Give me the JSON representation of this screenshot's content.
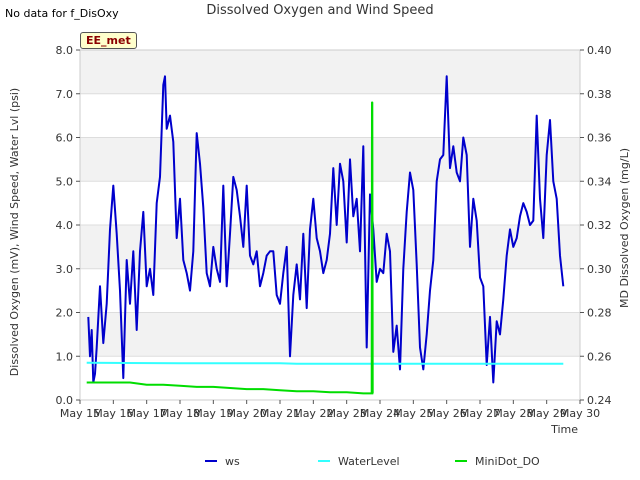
{
  "note": "No data for f_DisOxy",
  "badge": "EE_met",
  "chart_data": {
    "type": "line",
    "title": "Dissolved Oxygen and Wind Speed",
    "xlabel": "Time",
    "ylabel": "Dissolved Oxygen (mV), Wind Speed, Water Lvl (psi)",
    "y2label": "MD Dissolved Oxygen (mg/L)",
    "ylim": [
      0,
      8
    ],
    "y2lim": [
      0.24,
      0.4
    ],
    "yticks": [
      "0.0",
      "1.0",
      "2.0",
      "3.0",
      "4.0",
      "5.0",
      "6.0",
      "7.0",
      "8.0"
    ],
    "y2ticks": [
      "0.24",
      "0.26",
      "0.28",
      "0.30",
      "0.32",
      "0.34",
      "0.36",
      "0.38",
      "0.40"
    ],
    "xlim": [
      15,
      30
    ],
    "xticks": [
      "May 15",
      "May 16",
      "May 17",
      "May 18",
      "May 19",
      "May 20",
      "May 21",
      "May 22",
      "May 23",
      "May 24",
      "May 25",
      "May 26",
      "May 27",
      "May 28",
      "May 29",
      "May 30"
    ],
    "grid": "horizontal bands",
    "legend": "bottom",
    "series": [
      {
        "name": "ws",
        "color": "#0000cc",
        "axis": "left",
        "x": [
          15.25,
          15.3,
          15.35,
          15.4,
          15.45,
          15.5,
          15.6,
          15.7,
          15.8,
          15.9,
          16.0,
          16.1,
          16.2,
          16.3,
          16.4,
          16.5,
          16.6,
          16.7,
          16.8,
          16.9,
          17.0,
          17.1,
          17.2,
          17.3,
          17.4,
          17.5,
          17.55,
          17.6,
          17.7,
          17.8,
          17.9,
          18.0,
          18.1,
          18.2,
          18.3,
          18.4,
          18.5,
          18.6,
          18.7,
          18.8,
          18.9,
          19.0,
          19.1,
          19.2,
          19.3,
          19.4,
          19.5,
          19.6,
          19.7,
          19.8,
          19.9,
          20.0,
          20.1,
          20.2,
          20.3,
          20.4,
          20.5,
          20.6,
          20.7,
          20.8,
          20.9,
          21.0,
          21.1,
          21.2,
          21.3,
          21.4,
          21.5,
          21.6,
          21.7,
          21.8,
          21.9,
          22.0,
          22.1,
          22.2,
          22.3,
          22.4,
          22.5,
          22.6,
          22.7,
          22.8,
          22.9,
          23.0,
          23.1,
          23.2,
          23.3,
          23.4,
          23.5,
          23.6,
          23.7,
          23.8,
          23.9,
          24.0,
          24.1,
          24.2,
          24.3,
          24.4,
          24.5,
          24.6,
          24.7,
          24.8,
          24.9,
          25.0,
          25.1,
          25.2,
          25.3,
          25.4,
          25.5,
          25.6,
          25.7,
          25.8,
          25.9,
          26.0,
          26.1,
          26.2,
          26.3,
          26.4,
          26.5,
          26.6,
          26.7,
          26.8,
          26.9,
          27.0,
          27.1,
          27.2,
          27.3,
          27.4,
          27.5,
          27.6,
          27.7,
          27.8,
          27.9,
          28.0,
          28.1,
          28.2,
          28.3,
          28.4,
          28.5,
          28.6,
          28.7,
          28.8,
          28.9,
          29.0,
          29.1,
          29.2,
          29.3,
          29.4,
          29.5
        ],
        "values": [
          1.9,
          1.0,
          1.6,
          0.4,
          0.6,
          1.2,
          2.6,
          1.3,
          2.2,
          3.9,
          4.9,
          3.8,
          2.5,
          0.5,
          3.2,
          2.2,
          3.4,
          1.6,
          3.4,
          4.3,
          2.6,
          3.0,
          2.4,
          4.5,
          5.1,
          7.2,
          7.4,
          6.2,
          6.5,
          5.9,
          3.7,
          4.6,
          3.2,
          2.9,
          2.5,
          3.4,
          6.1,
          5.4,
          4.4,
          2.9,
          2.6,
          3.5,
          3.0,
          2.7,
          4.9,
          2.6,
          3.8,
          5.1,
          4.8,
          4.2,
          3.5,
          4.9,
          3.3,
          3.1,
          3.4,
          2.6,
          2.9,
          3.3,
          3.4,
          3.4,
          2.4,
          2.2,
          2.9,
          3.5,
          1.0,
          2.4,
          3.1,
          2.3,
          3.8,
          2.1,
          3.9,
          4.6,
          3.7,
          3.4,
          2.9,
          3.2,
          3.8,
          5.3,
          4.0,
          5.4,
          5.0,
          3.6,
          5.5,
          4.2,
          4.6,
          3.4,
          5.8,
          1.2,
          4.7,
          3.9,
          2.7,
          3.0,
          2.9,
          3.8,
          3.4,
          1.1,
          1.7,
          0.7,
          3.0,
          4.3,
          5.2,
          4.8,
          3.1,
          1.2,
          0.7,
          1.5,
          2.5,
          3.2,
          5.0,
          5.5,
          5.6,
          7.4,
          5.3,
          5.8,
          5.2,
          5.0,
          6.0,
          5.6,
          3.5,
          4.6,
          4.1,
          2.8,
          2.6,
          0.8,
          1.9,
          0.4,
          1.8,
          1.5,
          2.3,
          3.3,
          3.9,
          3.5,
          3.7,
          4.2,
          4.5,
          4.3,
          4.0,
          4.1,
          6.5,
          4.6,
          3.7,
          5.6,
          6.4,
          5.0,
          4.6,
          3.3,
          2.6
        ]
      },
      {
        "name": "WaterLevel",
        "color": "#33ffff",
        "axis": "left",
        "x": [
          15.2,
          18.0,
          20.0,
          21.0,
          21.5,
          22.0,
          24.0,
          26.0,
          28.0,
          29.5
        ],
        "values": [
          0.85,
          0.84,
          0.84,
          0.84,
          0.83,
          0.83,
          0.83,
          0.83,
          0.83,
          0.83
        ]
      },
      {
        "name": "MiniDot_DO",
        "color": "#00dd00",
        "axis": "right",
        "x": [
          15.2,
          15.5,
          16.0,
          16.5,
          17.0,
          17.5,
          18.0,
          18.5,
          19.0,
          19.5,
          20.0,
          20.5,
          21.0,
          21.5,
          22.0,
          22.5,
          23.0,
          23.5,
          23.7,
          23.75,
          23.76,
          23.77,
          23.78,
          23.8
        ],
        "values": [
          0.248,
          0.248,
          0.248,
          0.248,
          0.247,
          0.247,
          0.2465,
          0.246,
          0.246,
          0.2455,
          0.245,
          0.245,
          0.2445,
          0.244,
          0.244,
          0.2435,
          0.2435,
          0.243,
          0.243,
          0.243,
          0.376,
          0.376,
          0.243,
          0.243
        ]
      }
    ]
  }
}
